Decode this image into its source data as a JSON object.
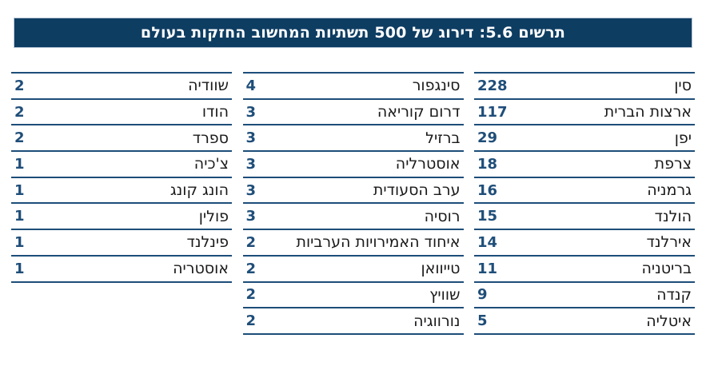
{
  "header": {
    "title": "תרשים 5.6: דירוג של 500 תשתיות המחשוב החזקות בעולם"
  },
  "colors": {
    "header_bg": "#0e3d62",
    "header_border": "#b7c6d5",
    "header_text": "#ffffff",
    "row_line": "#1d4e79",
    "number_text": "#1f4e79",
    "country_text": "#1a1a1a",
    "background": "#ffffff"
  },
  "chart_data": {
    "type": "table",
    "title": "תרשים 5.6: דירוג של 500 תשתיות המחשוב החזקות בעולם",
    "direction": "rtl",
    "column_order": "right-to-left",
    "columns": [
      {
        "rows": [
          {
            "country": "סין",
            "value": 228
          },
          {
            "country": "ארצות הברית",
            "value": 117
          },
          {
            "country": "יפן",
            "value": 29
          },
          {
            "country": "צרפת",
            "value": 18
          },
          {
            "country": "גרמניה",
            "value": 16
          },
          {
            "country": "הולנד",
            "value": 15
          },
          {
            "country": "אירלנד",
            "value": 14
          },
          {
            "country": "בריטניה",
            "value": 11
          },
          {
            "country": "קנדה",
            "value": 9
          },
          {
            "country": "איטליה",
            "value": 5
          }
        ]
      },
      {
        "rows": [
          {
            "country": "סינגפור",
            "value": 4
          },
          {
            "country": "דרום קוריאה",
            "value": 3
          },
          {
            "country": "ברזיל",
            "value": 3
          },
          {
            "country": "אוסטרליה",
            "value": 3
          },
          {
            "country": "ערב הסעודית",
            "value": 3
          },
          {
            "country": "רוסיה",
            "value": 3
          },
          {
            "country": "איחוד האמירויות הערביות",
            "value": 2
          },
          {
            "country": "טייוואן",
            "value": 2
          },
          {
            "country": "שוויץ",
            "value": 2
          },
          {
            "country": "נורווגיה",
            "value": 2
          }
        ]
      },
      {
        "rows": [
          {
            "country": "שוודיה",
            "value": 2
          },
          {
            "country": "הודו",
            "value": 2
          },
          {
            "country": "ספרד",
            "value": 2
          },
          {
            "country": "צ'כיה",
            "value": 1
          },
          {
            "country": "הונג קונג",
            "value": 1
          },
          {
            "country": "פולין",
            "value": 1
          },
          {
            "country": "פינלנד",
            "value": 1
          },
          {
            "country": "אוסטריה",
            "value": 1
          }
        ]
      }
    ]
  }
}
